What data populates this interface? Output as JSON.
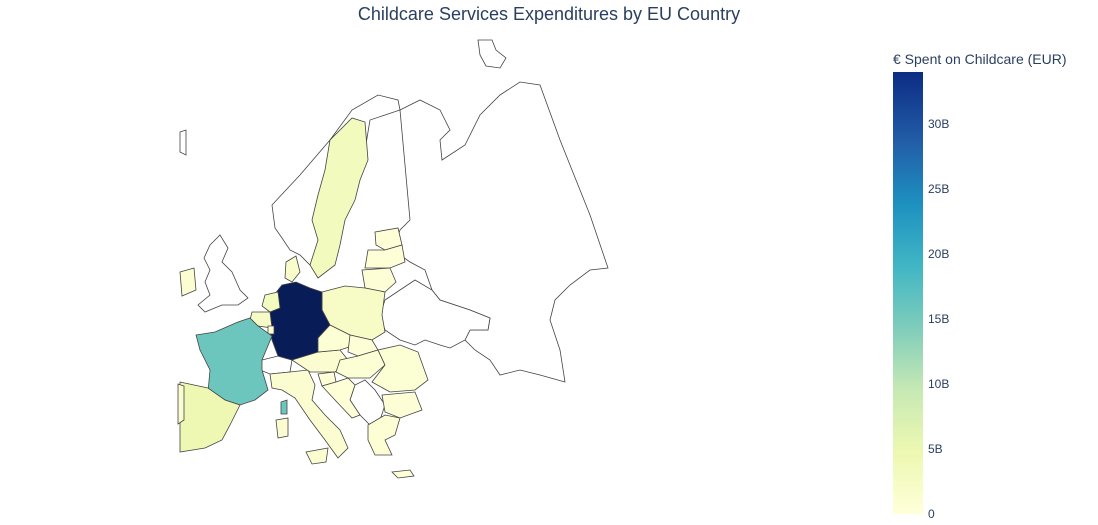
{
  "title": "Childcare Services Expenditures by EU Country",
  "colorbar": {
    "title": "€ Spent on Childcare (EUR)",
    "ticks": [
      {
        "label": "0",
        "value": 0
      },
      {
        "label": "5B",
        "value": 5
      },
      {
        "label": "10B",
        "value": 10
      },
      {
        "label": "15B",
        "value": 15
      },
      {
        "label": "20B",
        "value": 20
      },
      {
        "label": "25B",
        "value": 25
      },
      {
        "label": "30B",
        "value": 30
      }
    ],
    "range": [
      0,
      34
    ],
    "colorscale": [
      "#ffffd9",
      "#edf8b1",
      "#c7e9b4",
      "#7fcdbb",
      "#41b6c4",
      "#1d91c0",
      "#225ea8",
      "#0c2c84",
      "#081d58"
    ]
  },
  "chart_data": {
    "type": "choropleth",
    "unit": "billion EUR",
    "regions": [
      {
        "country": "Germany",
        "value": 34
      },
      {
        "country": "France",
        "value": 14
      },
      {
        "country": "Spain",
        "value": 4
      },
      {
        "country": "Sweden",
        "value": 3
      },
      {
        "country": "Finland",
        "value": 1.5
      },
      {
        "country": "Poland",
        "value": 2
      },
      {
        "country": "Belgium",
        "value": 2
      },
      {
        "country": "Netherlands",
        "value": 2.5
      },
      {
        "country": "Denmark",
        "value": 1.5
      },
      {
        "country": "Italy",
        "value": 1
      },
      {
        "country": "Austria",
        "value": 1
      },
      {
        "country": "Czechia",
        "value": 0.6
      },
      {
        "country": "Portugal",
        "value": 1
      },
      {
        "country": "Ireland",
        "value": 0.8
      },
      {
        "country": "Estonia",
        "value": 0.3
      },
      {
        "country": "Latvia",
        "value": 0.3
      },
      {
        "country": "Lithuania",
        "value": 0.4
      },
      {
        "country": "Slovakia",
        "value": 0.4
      },
      {
        "country": "Hungary",
        "value": 0.6
      },
      {
        "country": "Slovenia",
        "value": 0.2
      },
      {
        "country": "Croatia",
        "value": 0.3
      },
      {
        "country": "Romania",
        "value": 0.6
      },
      {
        "country": "Bulgaria",
        "value": 0.4
      },
      {
        "country": "Greece",
        "value": 0.5
      },
      {
        "country": "Cyprus",
        "value": 0.1
      },
      {
        "country": "Malta",
        "value": 0.05
      },
      {
        "country": "Luxembourg",
        "value": 0.3
      },
      {
        "country": "Corsica",
        "value": 14
      }
    ]
  }
}
